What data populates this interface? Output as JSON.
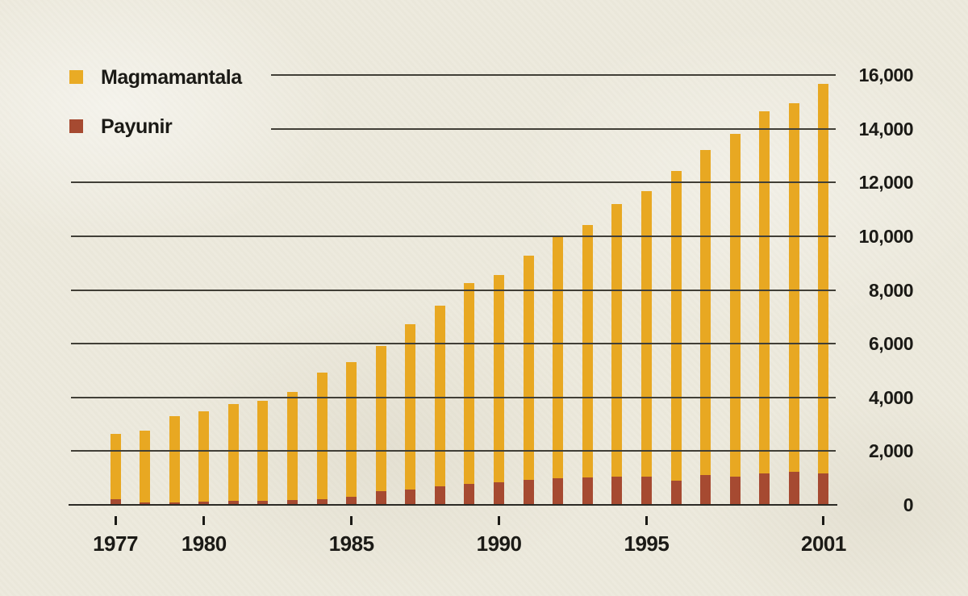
{
  "legend": {
    "items": [
      {
        "label": "Magmamantala",
        "color": "#e9ab25"
      },
      {
        "label": "Payunir",
        "color": "#a64a31"
      }
    ]
  },
  "chart_data": {
    "type": "bar",
    "style": "overlapping-columns",
    "title": "",
    "xlabel": "",
    "ylabel": "",
    "categories": [
      1977,
      1978,
      1979,
      1980,
      1981,
      1982,
      1983,
      1984,
      1985,
      1986,
      1987,
      1988,
      1989,
      1990,
      1991,
      1992,
      1993,
      1994,
      1995,
      1996,
      1997,
      1998,
      1999,
      2000,
      2001
    ],
    "series": [
      {
        "name": "Magmamantala",
        "color": "#e8a822",
        "values": [
          2650,
          2760,
          3300,
          3470,
          3750,
          3880,
          4200,
          4920,
          5320,
          5920,
          6720,
          7420,
          8270,
          8570,
          9290,
          9990,
          10410,
          11190,
          11690,
          12440,
          13220,
          13810,
          14660,
          14950,
          15670
        ]
      },
      {
        "name": "Payunir",
        "color": "#a64a31",
        "values": [
          200,
          90,
          100,
          130,
          160,
          160,
          180,
          200,
          300,
          500,
          580,
          680,
          780,
          850,
          930,
          1000,
          1010,
          1050,
          1050,
          910,
          1100,
          1060,
          1180,
          1230,
          1180
        ]
      }
    ],
    "ylim": [
      0,
      16000
    ],
    "ytick_interval": 2000,
    "y_tick_labels": [
      "0",
      "2,000",
      "4,000",
      "6,000",
      "8,000",
      "10,000",
      "12,000",
      "14,000",
      "16,000"
    ],
    "x_tick_labels": [
      "1977",
      "1980",
      "1985",
      "1990",
      "1995",
      "2001"
    ],
    "x_tick_years": [
      1977,
      1980,
      1985,
      1990,
      1995,
      2001
    ],
    "grid": "horizontal",
    "gridlines_over_bars": true,
    "legend_position": "top-left",
    "y_axis_side": "right"
  },
  "colors": {
    "background": "#edeadd",
    "gridline": "#413f37",
    "baseline": "#2b2a25",
    "text": "#1b1a16",
    "bar_magmamantala": "#e8a822",
    "bar_payunir": "#a64a31"
  }
}
